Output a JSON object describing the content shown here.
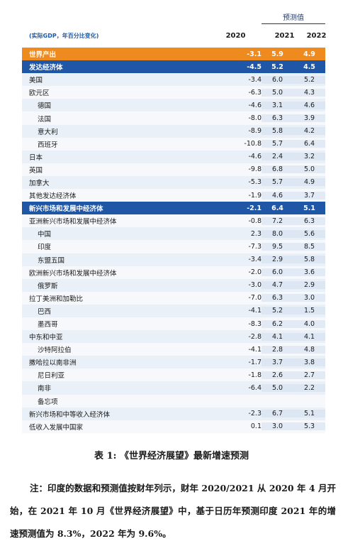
{
  "table": {
    "forecast_label": "预测值",
    "note": "(实际GDP，年百分比变化)",
    "col_2020": "2020",
    "col_2021": "2021",
    "col_2022": "2022",
    "rows": [
      {
        "name": "世界产出",
        "v2020": "-3.1",
        "v2021": "5.9",
        "v2022": "4.9",
        "type": "world"
      },
      {
        "name": "发达经济体",
        "v2020": "-4.5",
        "v2021": "5.2",
        "v2022": "4.5",
        "type": "group"
      },
      {
        "name": "美国",
        "v2020": "-3.4",
        "v2021": "6.0",
        "v2022": "5.2"
      },
      {
        "name": "欧元区",
        "v2020": "-6.3",
        "v2021": "5.0",
        "v2022": "4.3"
      },
      {
        "name": "德国",
        "v2020": "-4.6",
        "v2021": "3.1",
        "v2022": "4.6",
        "indent": 1
      },
      {
        "name": "法国",
        "v2020": "-8.0",
        "v2021": "6.3",
        "v2022": "3.9",
        "indent": 1
      },
      {
        "name": "意大利",
        "v2020": "-8.9",
        "v2021": "5.8",
        "v2022": "4.2",
        "indent": 1
      },
      {
        "name": "西班牙",
        "v2020": "-10.8",
        "v2021": "5.7",
        "v2022": "6.4",
        "indent": 1
      },
      {
        "name": "日本",
        "v2020": "-4.6",
        "v2021": "2.4",
        "v2022": "3.2"
      },
      {
        "name": "英国",
        "v2020": "-9.8",
        "v2021": "6.8",
        "v2022": "5.0"
      },
      {
        "name": "加拿大",
        "v2020": "-5.3",
        "v2021": "5.7",
        "v2022": "4.9"
      },
      {
        "name": "其他发达经济体",
        "v2020": "-1.9",
        "v2021": "4.6",
        "v2022": "3.7"
      },
      {
        "name": "新兴市场和发展中经济体",
        "v2020": "-2.1",
        "v2021": "6.4",
        "v2022": "5.1",
        "type": "group"
      },
      {
        "name": "亚洲新兴市场和发展中经济体",
        "v2020": "-0.8",
        "v2021": "7.2",
        "v2022": "6.3"
      },
      {
        "name": "中国",
        "v2020": "2.3",
        "v2021": "8.0",
        "v2022": "5.6",
        "indent": 1
      },
      {
        "name": "印度",
        "v2020": "-7.3",
        "v2021": "9.5",
        "v2022": "8.5",
        "indent": 1
      },
      {
        "name": "东盟五国",
        "v2020": "-3.4",
        "v2021": "2.9",
        "v2022": "5.8",
        "indent": 1
      },
      {
        "name": "欧洲新兴市场和发展中经济体",
        "v2020": "-2.0",
        "v2021": "6.0",
        "v2022": "3.6"
      },
      {
        "name": "俄罗斯",
        "v2020": "-3.0",
        "v2021": "4.7",
        "v2022": "2.9",
        "indent": 1
      },
      {
        "name": "拉丁美洲和加勒比",
        "v2020": "-7.0",
        "v2021": "6.3",
        "v2022": "3.0"
      },
      {
        "name": "巴西",
        "v2020": "-4.1",
        "v2021": "5.2",
        "v2022": "1.5",
        "indent": 1
      },
      {
        "name": "墨西哥",
        "v2020": "-8.3",
        "v2021": "6.2",
        "v2022": "4.0",
        "indent": 1
      },
      {
        "name": "中东和中亚",
        "v2020": "-2.8",
        "v2021": "4.1",
        "v2022": "4.1"
      },
      {
        "name": "沙特阿拉伯",
        "v2020": "-4.1",
        "v2021": "2.8",
        "v2022": "4.8",
        "indent": 1
      },
      {
        "name": "撒哈拉以南非洲",
        "v2020": "-1.7",
        "v2021": "3.7",
        "v2022": "3.8"
      },
      {
        "name": "尼日利亚",
        "v2020": "-1.8",
        "v2021": "2.6",
        "v2022": "2.7",
        "indent": 1
      },
      {
        "name": "南非",
        "v2020": "-6.4",
        "v2021": "5.0",
        "v2022": "2.2",
        "indent": 1
      },
      {
        "name": "备忘项",
        "v2020": "",
        "v2021": "",
        "v2022": "",
        "indent": 1
      },
      {
        "name": "新兴市场和中等收入经济体",
        "v2020": "-2.3",
        "v2021": "6.7",
        "v2022": "5.1"
      },
      {
        "name": "低收入发展中国家",
        "v2020": "0.1",
        "v2021": "3.0",
        "v2022": "5.3"
      }
    ]
  },
  "caption": "表 1: 《世界经济展望》最新增速预测",
  "note_text": "注：印度的数据和预测值按财年列示，财年 2020/2021 从 2020 年 4 月开始，在 2021 年 10 月《世界经济展望》中，基于日历年预测印度 2021 年的增速预测值为 8.3%，2022 年为 9.6%。",
  "colors": {
    "world_row": "#ef8a1f",
    "group_row": "#1f57a6",
    "header_note": "#1e5aa8",
    "row_odd": "#eaf0f7",
    "row_even": "#f6f8fb"
  }
}
